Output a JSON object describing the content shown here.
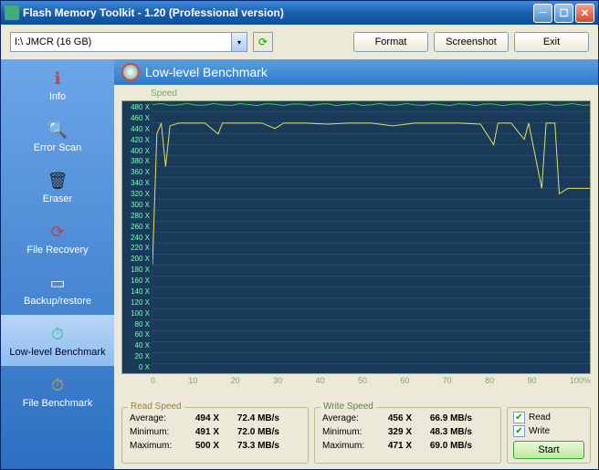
{
  "window": {
    "title": "Flash Memory Toolkit - 1.20 (Professional version)"
  },
  "toolbar": {
    "drive": "I:\\ JMCR (16 GB)",
    "buttons": {
      "format": "Format",
      "screenshot": "Screenshot",
      "exit": "Exit"
    }
  },
  "sidebar": {
    "items": [
      {
        "label": "Info",
        "icon": "ℹ",
        "color": "#c04040"
      },
      {
        "label": "Error Scan",
        "icon": "🔍",
        "color": "#402010"
      },
      {
        "label": "Eraser",
        "icon": "🗑",
        "color": "#202020"
      },
      {
        "label": "File Recovery",
        "icon": "⟳",
        "color": "#c04040"
      },
      {
        "label": "Backup/restore",
        "icon": "▭",
        "color": "#eee"
      },
      {
        "label": "Low-level Benchmark",
        "icon": "⏱",
        "color": "#40c0a0",
        "active": true
      },
      {
        "label": "File Benchmark",
        "icon": "⏱",
        "color": "#c0a040"
      }
    ]
  },
  "main": {
    "title": "Low-level Benchmark",
    "chart": {
      "speed_label": "Speed",
      "ylabels": [
        "480 X",
        "460 X",
        "440 X",
        "420 X",
        "400 X",
        "380 X",
        "360 X",
        "340 X",
        "320 X",
        "300 X",
        "280 X",
        "260 X",
        "240 X",
        "220 X",
        "200 X",
        "180 X",
        "160 X",
        "140 X",
        "120 X",
        "100 X",
        "80 X",
        "60 X",
        "40 X",
        "20 X",
        "0 X"
      ],
      "xlabels": [
        "0",
        "10",
        "20",
        "30",
        "40",
        "50",
        "60",
        "70",
        "80",
        "90",
        "100%"
      ],
      "ylim": [
        0,
        500
      ],
      "line_color_top": "#30d050",
      "line_color_main": "#e0e060",
      "background": "#1a3a5a"
    },
    "read": {
      "legend": "Read Speed",
      "rows": [
        {
          "lbl": "Average:",
          "x": "494 X",
          "mb": "72.4 MB/s"
        },
        {
          "lbl": "Minimum:",
          "x": "491 X",
          "mb": "72.0 MB/s"
        },
        {
          "lbl": "Maximum:",
          "x": "500 X",
          "mb": "73.3 MB/s"
        }
      ]
    },
    "write": {
      "legend": "Write Speed",
      "rows": [
        {
          "lbl": "Average:",
          "x": "456 X",
          "mb": "66.9 MB/s"
        },
        {
          "lbl": "Minimum:",
          "x": "329 X",
          "mb": "48.3 MB/s"
        },
        {
          "lbl": "Maximum:",
          "x": "471 X",
          "mb": "69.0 MB/s"
        }
      ]
    },
    "controls": {
      "read": "Read",
      "write": "Write",
      "start": "Start",
      "read_checked": true,
      "write_checked": true
    }
  }
}
